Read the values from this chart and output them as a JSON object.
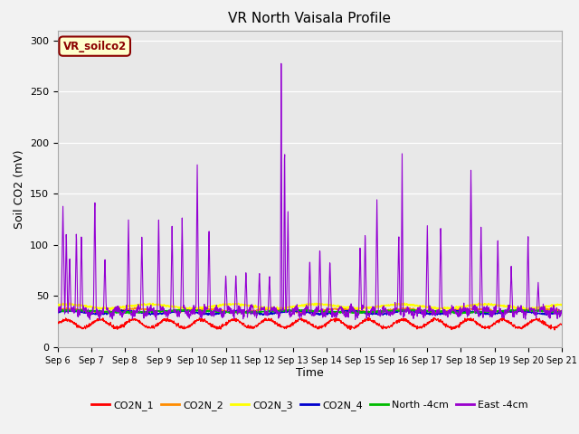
{
  "title": "VR North Vaisala Profile",
  "ylabel": "Soil CO2 (mV)",
  "xlabel": "Time",
  "annotation": "VR_soilco2",
  "ylim": [
    0,
    310
  ],
  "yticks": [
    0,
    50,
    100,
    150,
    200,
    250,
    300
  ],
  "series": {
    "CO2N_1": {
      "color": "#ff0000",
      "lw": 0.8
    },
    "CO2N_2": {
      "color": "#ff8c00",
      "lw": 0.8
    },
    "CO2N_3": {
      "color": "#ffff00",
      "lw": 1.0
    },
    "CO2N_4": {
      "color": "#0000cd",
      "lw": 0.8
    },
    "North -4cm": {
      "color": "#00bb00",
      "lw": 1.0
    },
    "East -4cm": {
      "color": "#9400d3",
      "lw": 0.8
    }
  },
  "fig_bg": "#f2f2f2",
  "plot_bg": "#e8e8e8",
  "legend_colors": [
    "#ff0000",
    "#ff8c00",
    "#ffff00",
    "#0000cd",
    "#00bb00",
    "#9900cc"
  ],
  "legend_labels": [
    "CO2N_1",
    "CO2N_2",
    "CO2N_3",
    "CO2N_4",
    "North -4cm",
    "East -4cm"
  ],
  "xtick_labels": [
    "Sep 6",
    "Sep 7",
    "Sep 8",
    "Sep 9",
    "Sep 10",
    "Sep 11",
    "Sep 12",
    "Sep 13",
    "Sep 14",
    "Sep 15",
    "Sep 16",
    "Sep 17",
    "Sep 18",
    "Sep 19",
    "Sep 20",
    "Sep 21"
  ],
  "seed": 42
}
